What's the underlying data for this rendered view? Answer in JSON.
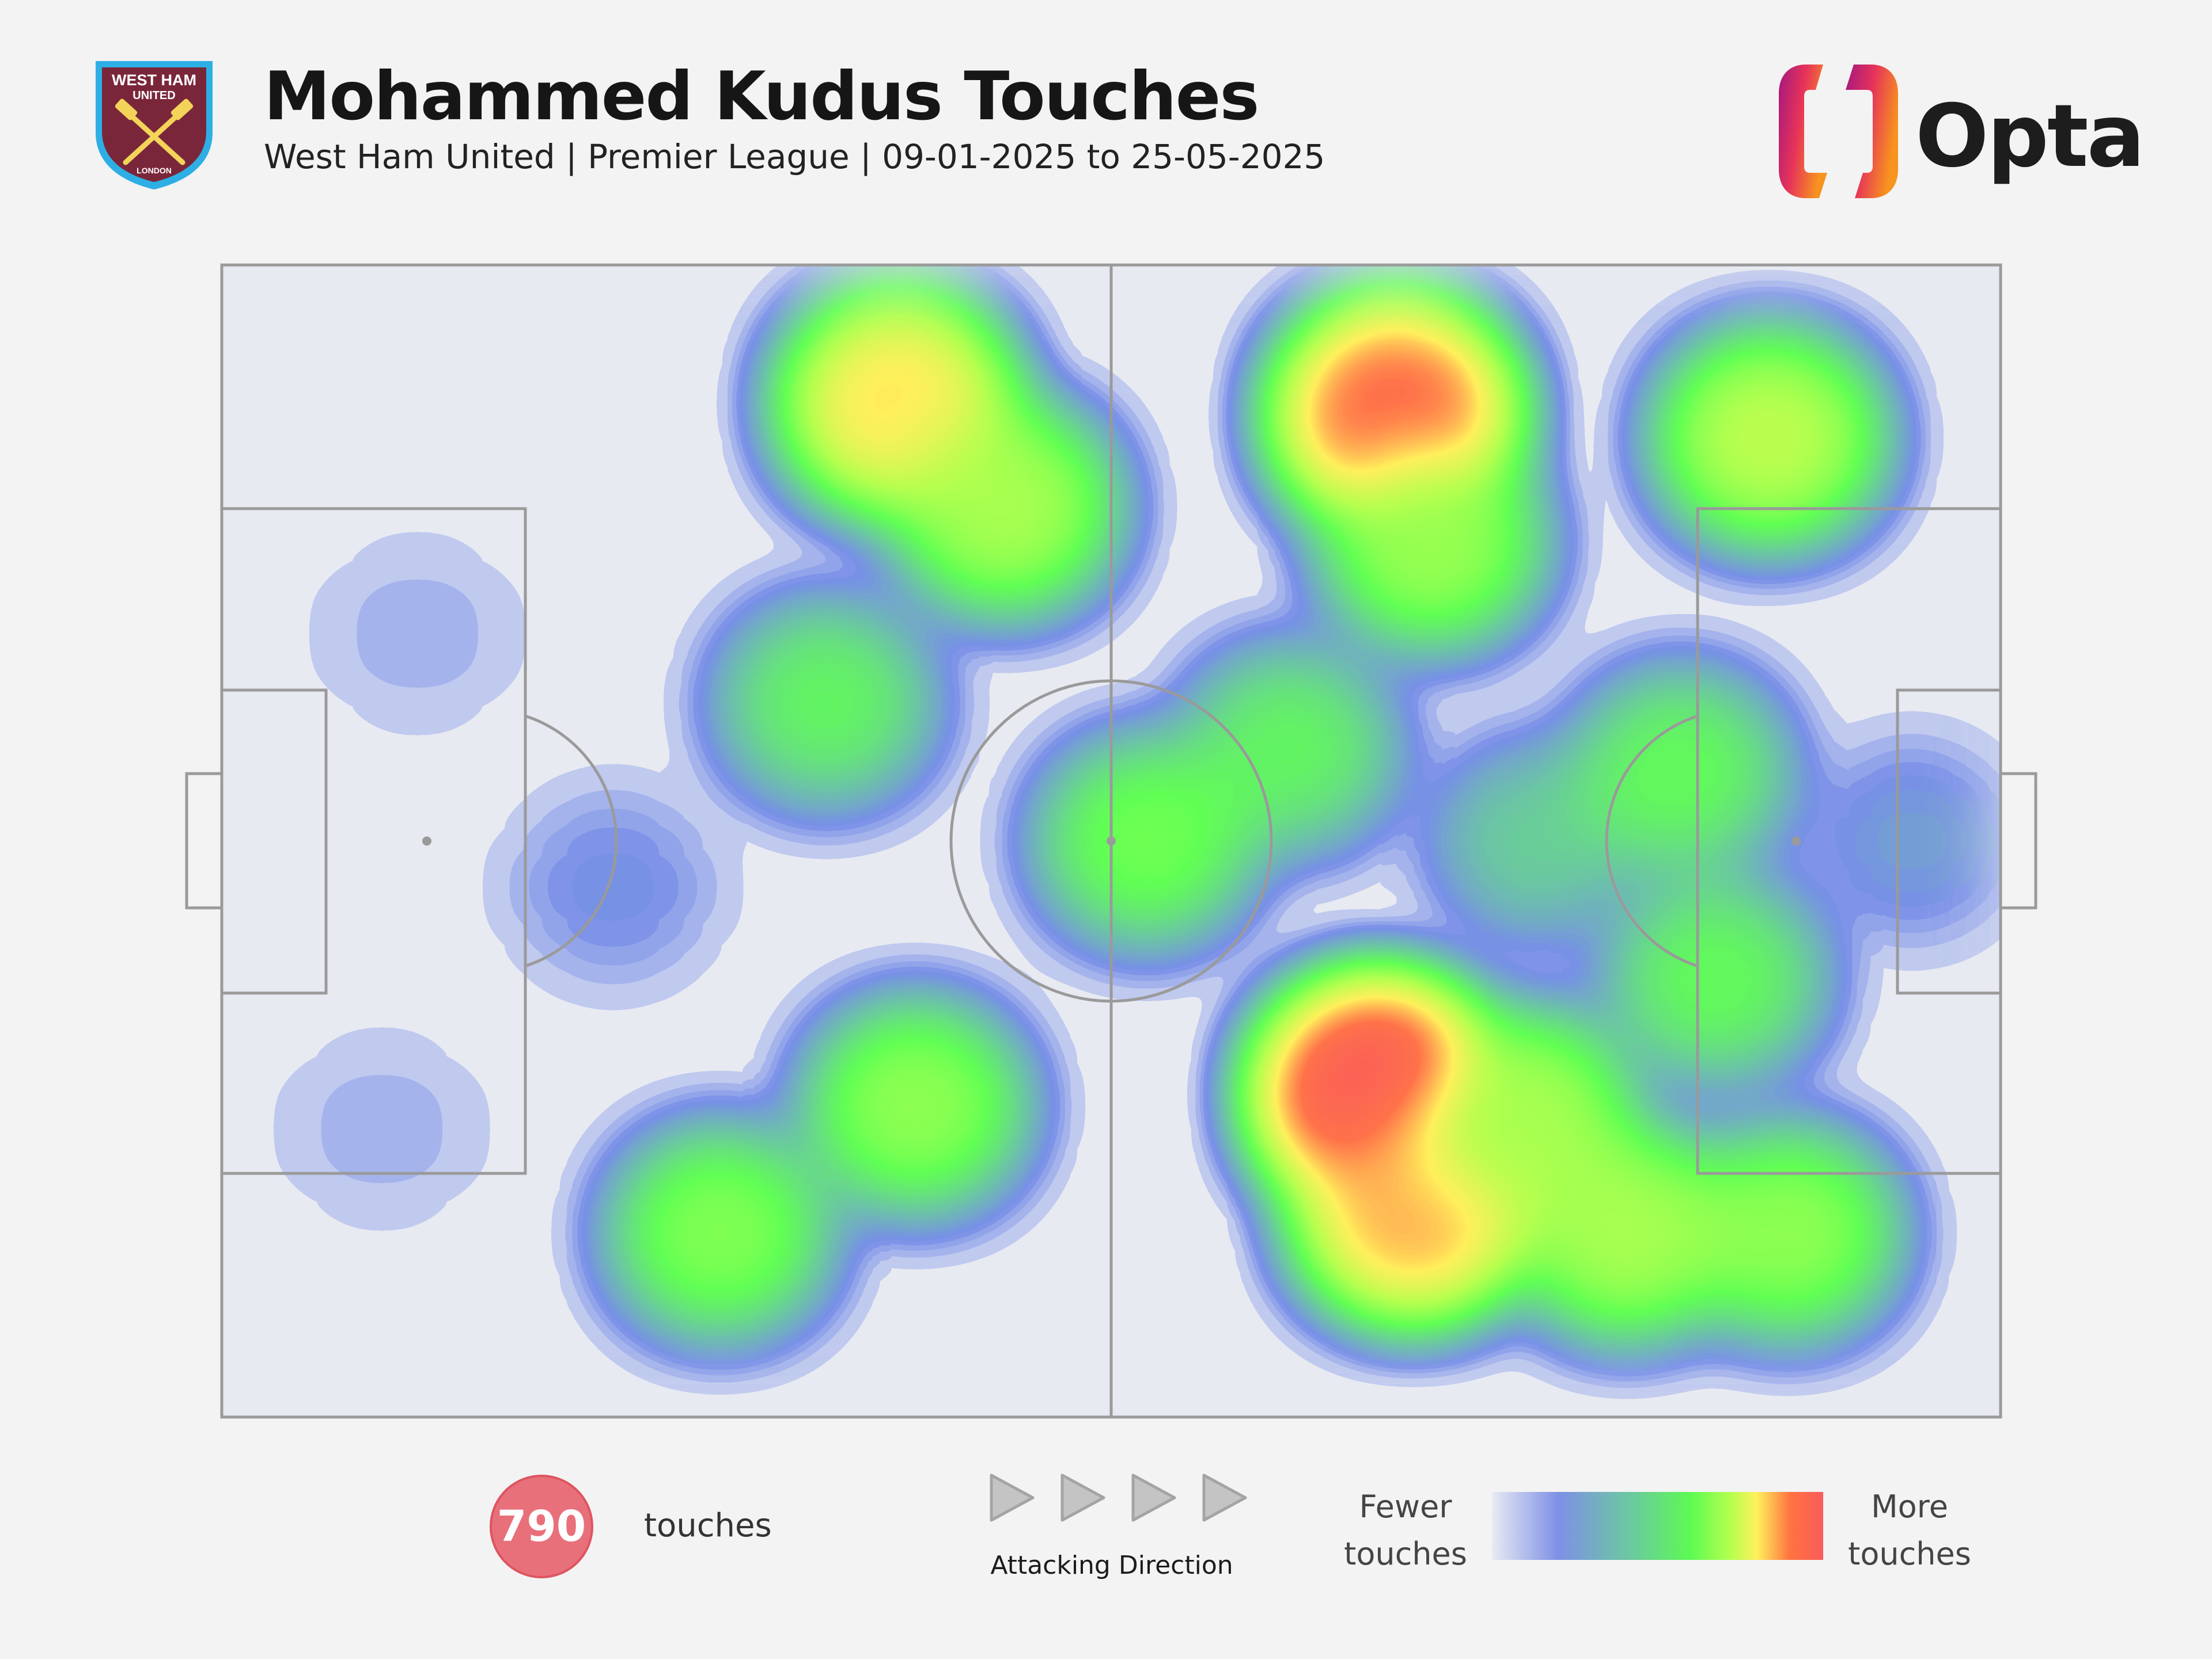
{
  "header": {
    "title": "Mohammed Kudus Touches",
    "subtitle": "West Ham United | Premier League | 09-01-2025 to 25-05-2025",
    "crest": {
      "top_text": "WEST HAM",
      "mid_text": "UNITED",
      "bottom_text": "LONDON"
    },
    "brand": "Opta"
  },
  "colors": {
    "background": "#f3f3f3",
    "pitch_lines": "#9a9a9a",
    "badge": "#e8707a",
    "crest_maroon": "#7a263a",
    "crest_blue": "#2dafe5",
    "crest_gold": "#f3d459"
  },
  "chart_data": {
    "type": "heatmap",
    "title": "Mohammed Kudus Touches",
    "attacking_direction": "left-to-right",
    "total_touches": 790,
    "pitch_coordinates": {
      "x_range": [
        0,
        100
      ],
      "y_range": [
        0,
        100
      ]
    },
    "intensity_scale": {
      "min_label": "Fewer touches",
      "max_label": "More touches"
    },
    "hotspots": [
      {
        "x": 66,
        "y": 13,
        "intensity": 0.87
      },
      {
        "x": 38,
        "y": 12,
        "intensity": 0.72
      },
      {
        "x": 44,
        "y": 21,
        "intensity": 0.55
      },
      {
        "x": 87,
        "y": 15,
        "intensity": 0.58
      },
      {
        "x": 68,
        "y": 24,
        "intensity": 0.52
      },
      {
        "x": 65,
        "y": 72,
        "intensity": 0.97
      },
      {
        "x": 67,
        "y": 82,
        "intensity": 0.78
      },
      {
        "x": 73,
        "y": 74,
        "intensity": 0.55
      },
      {
        "x": 79,
        "y": 84,
        "intensity": 0.55
      },
      {
        "x": 88,
        "y": 84,
        "intensity": 0.5
      },
      {
        "x": 39,
        "y": 73,
        "intensity": 0.5
      },
      {
        "x": 28,
        "y": 84,
        "intensity": 0.48
      },
      {
        "x": 34,
        "y": 38,
        "intensity": 0.4
      },
      {
        "x": 52,
        "y": 50,
        "intensity": 0.45
      },
      {
        "x": 60,
        "y": 42,
        "intensity": 0.4
      },
      {
        "x": 74,
        "y": 50,
        "intensity": 0.3
      },
      {
        "x": 82,
        "y": 44,
        "intensity": 0.42
      },
      {
        "x": 84,
        "y": 62,
        "intensity": 0.42
      },
      {
        "x": 22,
        "y": 54,
        "intensity": 0.15
      },
      {
        "x": 11,
        "y": 32,
        "intensity": 0.08
      },
      {
        "x": 9,
        "y": 75,
        "intensity": 0.08
      },
      {
        "x": 95,
        "y": 50,
        "intensity": 0.18
      }
    ]
  },
  "footer": {
    "touch_count": "790",
    "touch_label": "touches",
    "direction_label": "Attacking Direction",
    "legend_fewer": [
      "Fewer",
      "touches"
    ],
    "legend_more": [
      "More",
      "touches"
    ]
  }
}
